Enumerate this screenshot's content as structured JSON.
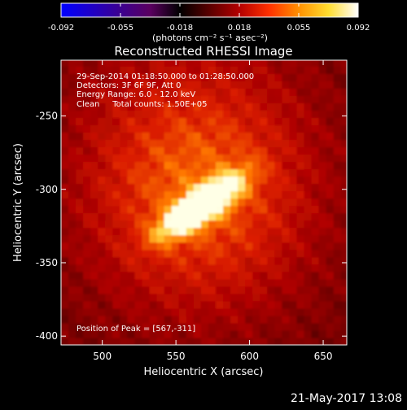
{
  "colorbar": {
    "ticks": [
      "-0.092",
      "-0.055",
      "-0.018",
      "0.018",
      "0.055",
      "0.092"
    ],
    "units": "(photons cm⁻² s⁻¹ asec⁻²)",
    "stops": [
      "#0000ff",
      "#1e00c8",
      "#3c0090",
      "#5a0060",
      "#000000",
      "#5a0000",
      "#b40000",
      "#ff3000",
      "#ff9000",
      "#ffdd30",
      "#ffffff"
    ]
  },
  "chart_data": {
    "type": "heatmap",
    "title": "Reconstructed RHESSI Image",
    "xlabel": "Heliocentric X (arcsec)",
    "ylabel": "Heliocentric Y (arcsec)",
    "xlim": [
      472,
      666
    ],
    "ylim": [
      -406,
      -212
    ],
    "xticks": [
      500,
      550,
      600,
      650
    ],
    "yticks": [
      -250,
      -300,
      -350,
      -400
    ],
    "clim": [
      -0.092,
      0.092
    ],
    "peak": [
      567,
      -311
    ],
    "annotations": [
      "29-Sep-2014 01:18:50.000 to 01:28:50.000",
      "Detectors: 3F 6F 9F, Att 0",
      "Energy Range: 6.0 - 12.0 keV",
      "Clean     Total counts: 1.50E+05",
      "Position of Peak = [567,-311]"
    ]
  },
  "footer": {
    "timestamp": "21-May-2017 13:08"
  }
}
